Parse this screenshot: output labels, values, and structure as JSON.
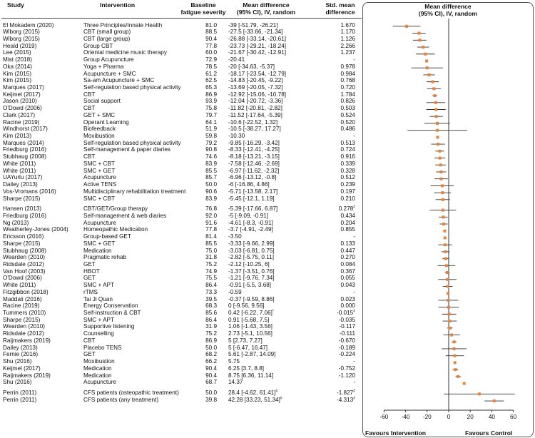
{
  "headers": {
    "study": "Study",
    "intervention": "Intervention",
    "baseline_line1": "Baseline",
    "baseline_line2": "fatigue severity",
    "md_line1": "Mean difference",
    "md_line2": "(95% CI), IV, random",
    "smd_line1": "Std. mean",
    "smd_line2": "difference",
    "plot_line1": "Mean difference",
    "plot_line2": "(95% CI), IV, random"
  },
  "footer": {
    "favours_intervention": "Favours Intervention",
    "favours_control": "Favours Control"
  },
  "colors": {
    "marker": "#e8823a",
    "line": "#333333",
    "panel_border": "#555555"
  },
  "chart_data": {
    "type": "forest",
    "xlim": [
      -60,
      60
    ],
    "xticks": [
      -60,
      -40,
      -20,
      0,
      20,
      40,
      60
    ],
    "rows": [
      {
        "study": "El Mokadem (2020)",
        "intervention": "Three Principles/Innate Health",
        "baseline": "81.0",
        "md_text": "-39 [-51.79, -26.21]",
        "smd": "1.670",
        "md": -39,
        "lo": -51.79,
        "hi": -26.21
      },
      {
        "study": "Wiborg (2015)",
        "intervention": "CBT (small group)",
        "baseline": "88.5",
        "md_text": "-27.5 [-33.66, -21.34]",
        "smd": "1.170",
        "md": -27.5,
        "lo": -33.66,
        "hi": -21.34
      },
      {
        "study": "Wiborg (2015)",
        "intervention": "CBT (large group)",
        "baseline": "90.4",
        "md_text": "-26.88 [-33.14, -20.61]",
        "smd": "1.126",
        "md": -26.88,
        "lo": -33.14,
        "hi": -20.61
      },
      {
        "study": "Heald (2019)",
        "intervention": "Group CBT",
        "baseline": "77.8",
        "md_text": "-23.73 [-29.21, -18.24]",
        "smd": "2.266",
        "md": -23.73,
        "lo": -29.21,
        "hi": -18.24
      },
      {
        "study": "Lee (2015)",
        "intervention": "Oriental medicine music therapy",
        "baseline": "60.0",
        "md_text": "-21.67 [-30.42, -12.91]",
        "smd": "1.237",
        "md": -21.67,
        "lo": -30.42,
        "hi": -12.91
      },
      {
        "study": "Mist (2018)",
        "intervention": "Group Acupuncture",
        "baseline": "72.9",
        "md_text": "-20.41",
        "smd": "-",
        "md": -20.41,
        "lo": null,
        "hi": null
      },
      {
        "study": "Oka (2014)",
        "intervention": "Yoga + Pharma",
        "baseline": "78.5",
        "md_text": "-20 [-34.63, -5.37]",
        "smd": "0.978",
        "md": -20,
        "lo": -34.63,
        "hi": -5.37
      },
      {
        "study": "Kim (2015)",
        "intervention": "Acupuncture + SMC",
        "baseline": "61.2",
        "md_text": "-18.17 [-23.54, -12.79]",
        "smd": "0.984",
        "md": -18.17,
        "lo": -23.54,
        "hi": -12.79
      },
      {
        "study": "Kim (2015)",
        "intervention": "Sa-am Acupuncture + SMC",
        "baseline": "62.5",
        "md_text": "-14.83 [-20.45, -9.22]",
        "smd": "0.768",
        "md": -14.83,
        "lo": -20.45,
        "hi": -9.22
      },
      {
        "study": "Marques (2017)",
        "intervention": "Self-regulation based physical activity",
        "baseline": "65.3",
        "md_text": "-13.69 [-20.05, -7.32]",
        "smd": "0.720",
        "md": -13.69,
        "lo": -20.05,
        "hi": -7.32
      },
      {
        "study": "Keijmel (2017)",
        "intervention": "CBT",
        "baseline": "86.9",
        "md_text": "-12.92 [-15.06, -10.78]",
        "smd": "1.784",
        "md": -12.92,
        "lo": -15.06,
        "hi": -10.78
      },
      {
        "study": "Jason (2010)",
        "intervention": "Social support",
        "baseline": "93.9",
        "md_text": "-12.04 [-20.72, -3.36]",
        "smd": "0.826",
        "md": -12.04,
        "lo": -20.72,
        "hi": -3.36
      },
      {
        "study": "O'Dowd (2006)",
        "intervention": "CBT",
        "baseline": "75.8",
        "md_text": "-11.82 [-20.81, -2.82]",
        "smd": "0.503",
        "md": -11.82,
        "lo": -20.81,
        "hi": -2.82
      },
      {
        "study": "Clark (2017)",
        "intervention": "GET + SMC",
        "baseline": "79.7",
        "md_text": "-11.52 [-17.64, -5.39]",
        "smd": "0.524",
        "md": -11.52,
        "lo": -17.64,
        "hi": -5.39
      },
      {
        "study": "Racine (2019)",
        "intervention": "Operant Learning",
        "baseline": "64.1",
        "md_text": "-10.6 [-22.52, 1.32]",
        "smd": "0.520",
        "md": -10.6,
        "lo": -22.52,
        "hi": 1.32
      },
      {
        "study": "Windhorst (2017)",
        "intervention": "Biofeedback",
        "baseline": "51.9",
        "md_text": "-10.5 [-38.27, 17.27]",
        "smd": "0.486",
        "md": -10.5,
        "lo": -38.27,
        "hi": 17.27
      },
      {
        "study": "Kim (2013)",
        "intervention": "Moxibustion",
        "baseline": "59.8",
        "md_text": "-10.30",
        "smd": "-",
        "md": -10.3,
        "lo": null,
        "hi": null
      },
      {
        "study": "Marques (2014)",
        "intervention": "Self-regulation based physical activity",
        "baseline": "79.2",
        "md_text": "-9.85 [-16.29, -3.42]",
        "smd": "0.513",
        "md": -9.85,
        "lo": -16.29,
        "hi": -3.42
      },
      {
        "study": "Friedburg (2016)",
        "intervention": "Self-management & paper diaries",
        "baseline": "90.8",
        "md_text": "-8.33 [-12.41, -4.25]",
        "smd": "0.724",
        "md": -8.33,
        "lo": -12.41,
        "hi": -4.25
      },
      {
        "study": "Stubhaug (2008)",
        "intervention": "CBT",
        "baseline": "74.6",
        "md_text": "-8.18 [-13.21, -3.15]",
        "smd": "0.916",
        "md": -8.18,
        "lo": -13.21,
        "hi": -3.15
      },
      {
        "study": "White (2011)",
        "intervention": "SMC + CBT",
        "baseline": "83.9",
        "md_text": "-7.58 [-12.46, -2.69]",
        "smd": "0.339",
        "md": -7.58,
        "lo": -12.46,
        "hi": -2.69
      },
      {
        "study": "White (2011)",
        "intervention": "SMC + GET",
        "baseline": "85.5",
        "md_text": "-6.97 [-11.62, -2.32]",
        "smd": "0.328",
        "md": -6.97,
        "lo": -11.62,
        "hi": -2.32
      },
      {
        "study": "UAYurlu (2017)",
        "intervention": "Acupuncture",
        "baseline": "85.7",
        "md_text": "-6.96 [-13.12, -0.8]",
        "smd": "0.512",
        "md": -6.96,
        "lo": -13.12,
        "hi": -0.8
      },
      {
        "study": "Dailey (2013)",
        "intervention": "Active TENS",
        "baseline": "50.0",
        "md_text": "-6 [-16.86, 4.86]",
        "smd": "0.239",
        "md": -6,
        "lo": -16.86,
        "hi": 4.86
      },
      {
        "study": "Vos-Vromans (2016)",
        "intervention": "Multidisciplinary rehabilitation treatment",
        "baseline": "90.6",
        "md_text": "-5.71 [-13.58, 2.17]",
        "smd": "0.197",
        "md": -5.71,
        "lo": -13.58,
        "hi": 2.17
      },
      {
        "study": "Sharpe (2015)",
        "intervention": "SMC + CBT",
        "baseline": "83.9",
        "md_text": "-5.45 [-12.1, 1.19]",
        "smd": "0.210",
        "md": -5.45,
        "lo": -12.1,
        "hi": 1.19
      },
      {
        "study": "Hansen (2013)",
        "intervention": "CBT/GET/Group therapy",
        "baseline": "76.8",
        "md_text": "-5.39 [-17.66, 6.87]",
        "smd": "0.278",
        "smd_sup": "#",
        "md": -5.39,
        "lo": -17.66,
        "hi": 6.87,
        "gap_before": true
      },
      {
        "study": "Friedburg (2016)",
        "intervention": "Self-management & web diaries",
        "baseline": "92.0",
        "md_text": "-5 [-9.09, -0.91]",
        "smd": "0.434",
        "md": -5,
        "lo": -9.09,
        "hi": -0.91
      },
      {
        "study": "Ng (2013)",
        "intervention": "Acupuncture",
        "baseline": "91.6",
        "md_text": "-4.61 [-8.3, -0.91]",
        "smd": "0.204",
        "md": -4.61,
        "lo": -8.3,
        "hi": -0.91
      },
      {
        "study": "Weatherley-Jones (2004)",
        "intervention": "Homeopathic Medication",
        "baseline": "77.8",
        "md_text": "-3.7 [-4.91, -2.49]",
        "smd": "0.855",
        "md": -3.7,
        "lo": -4.91,
        "hi": -2.49
      },
      {
        "study": "Ericsson (2016)",
        "intervention": "Group-based GET",
        "baseline": "81.4",
        "md_text": "-3.50",
        "smd": "-",
        "md": -3.5,
        "lo": null,
        "hi": null
      },
      {
        "study": "Sharpe (2015)",
        "intervention": "SMC + GET",
        "baseline": "85.5",
        "md_text": "-3.33 [-9.66, 2.99]",
        "smd": "0.133",
        "md": -3.33,
        "lo": -9.66,
        "hi": 2.99
      },
      {
        "study": "Stubhaug (2008)",
        "intervention": "Medication",
        "baseline": "75.0",
        "md_text": "-3.03 [-6.81, 0.75]",
        "smd": "0.447",
        "md": -3.03,
        "lo": -6.81,
        "hi": 0.75
      },
      {
        "study": "Wearden (2010)",
        "intervention": "Pragmatic rehab",
        "baseline": "31.8",
        "md_text": "-2.82 [-5.75, 0.11]",
        "smd": "0.270",
        "md": -2.82,
        "lo": -5.75,
        "hi": 0.11
      },
      {
        "study": "Ridsdale (2012)",
        "intervention": "GET",
        "baseline": "75.2",
        "md_text": "-2.12 [-10.25, 6]",
        "smd": "0.084",
        "md": -2.12,
        "lo": -10.25,
        "hi": 6
      },
      {
        "study": "Van Hoof (2003)",
        "intervention": "HBOT",
        "baseline": "74.9",
        "md_text": "-1.37 [-3.51, 0.76]",
        "smd": "0.367",
        "md": -1.37,
        "lo": -3.51,
        "hi": 0.76
      },
      {
        "study": "O'Dowd (2006)",
        "intervention": "GET",
        "baseline": "75.5",
        "md_text": "-1.21 [-9.76, 7.34]",
        "smd": "0.055",
        "md": -1.21,
        "lo": -9.76,
        "hi": 7.34
      },
      {
        "study": "White (2011)",
        "intervention": "SMC + APT",
        "baseline": "86.4",
        "md_text": "-0.91 [-5.5, 3.68]",
        "smd": "0.043",
        "md": -0.91,
        "lo": -5.5,
        "hi": 3.68
      },
      {
        "study": "Fitzgibbon (2018)",
        "intervention": "rTMS",
        "baseline": "73.3",
        "md_text": "-0.59",
        "smd": "-",
        "md": -0.59,
        "lo": null,
        "hi": null
      },
      {
        "study": "Maddali (2016)",
        "intervention": "Tai Ji Quan",
        "baseline": "39.5",
        "md_text": "-0.37 [-9.59, 8.86]",
        "smd": "0.023",
        "md": -0.37,
        "lo": -9.59,
        "hi": 8.86
      },
      {
        "study": "Racine (2019)",
        "intervention": "Energy Conservation",
        "baseline": "68.3",
        "md_text": "0 [-9.56, 9.56]",
        "smd": "0.000",
        "md": 0,
        "lo": -9.56,
        "hi": 9.56
      },
      {
        "study": "Tummers (2010)",
        "intervention": "Self-instruction & CBT",
        "baseline": "85.6",
        "md_text": "0.42 [-6.22, 7.06]",
        "md_sup": "*",
        "smd": "-0.015",
        "smd_sup": "#",
        "md": 0.42,
        "lo": -6.22,
        "hi": 7.06
      },
      {
        "study": "Sharpe (2015)",
        "intervention": "SMC + APT",
        "baseline": "86.4",
        "md_text": "0.91 [-5.68, 7.5]",
        "smd": "-0.035",
        "md": 0.91,
        "lo": -5.68,
        "hi": 7.5
      },
      {
        "study": "Wearden (2010)",
        "intervention": "Supportive listening",
        "baseline": "31.9",
        "md_text": "1.06 [-1.43, 3.56]",
        "smd": "-0.117",
        "md": 1.06,
        "lo": -1.43,
        "hi": 3.56
      },
      {
        "study": "Ridsdale (2012)",
        "intervention": "Counselling",
        "baseline": "75.2",
        "md_text": "2.73 [-5.1, 10.56]",
        "smd": "-0.111",
        "md": 2.73,
        "lo": -5.1,
        "hi": 10.56
      },
      {
        "study": "Raijmakers (2019)",
        "intervention": "CBT",
        "baseline": "86.9",
        "md_text": "5 [2.73, 7.27]",
        "smd": "-0.670",
        "md": 5,
        "lo": 2.73,
        "hi": 7.27
      },
      {
        "study": "Dailey (2013)",
        "intervention": "Placebo TENS",
        "baseline": "50.0",
        "md_text": "5 [-6.47, 16.47]",
        "smd": "-0.189",
        "md": 5,
        "lo": -6.47,
        "hi": 16.47
      },
      {
        "study": "Fernie (2016)",
        "intervention": "GET",
        "baseline": "68.2",
        "md_text": "5.61 [-2.87, 14.09]",
        "smd": "-0.224",
        "md": 5.61,
        "lo": -2.87,
        "hi": 14.09
      },
      {
        "study": "Shu (2016)",
        "intervention": "Moxibustion",
        "baseline": "66.2",
        "md_text": "5.75",
        "smd": "-",
        "md": 5.75,
        "lo": null,
        "hi": null
      },
      {
        "study": "Keijmel (2017)",
        "intervention": "Medication",
        "baseline": "90.4",
        "md_text": "6.25 [3.7, 8.8]",
        "smd": "-0.752",
        "md": 6.25,
        "lo": 3.7,
        "hi": 8.8
      },
      {
        "study": "Raijmakers (2019)",
        "intervention": "Medication",
        "baseline": "90.4",
        "md_text": "8.75 [6.36, 11.14]",
        "smd": "-1.120",
        "md": 8.75,
        "lo": 6.36,
        "hi": 11.14
      },
      {
        "study": "Shu (2016)",
        "intervention": "Acupuncture",
        "baseline": "68.7",
        "md_text": "14.37",
        "smd": "-",
        "md": 14.37,
        "lo": null,
        "hi": null
      },
      {
        "study": "Perrin (2011)",
        "intervention": "CFS patients (osteopathic treatment)",
        "baseline": "50.0",
        "md_text": "28.4 [-4.62, 61.41]",
        "md_sup": "#",
        "smd": "-1.827",
        "smd_sup": "#",
        "md": 28.4,
        "lo": -4.62,
        "hi": 61.41,
        "gap_before": true
      },
      {
        "study": "Perrin (2011)",
        "intervention": "CFS patients (any treatment)",
        "baseline": "39.8",
        "md_text": "42.28 [33.23, 51.34]",
        "md_sup": "#",
        "smd": "-4.313",
        "smd_sup": "#",
        "md": 42.28,
        "lo": 33.23,
        "hi": 51.34
      }
    ]
  }
}
